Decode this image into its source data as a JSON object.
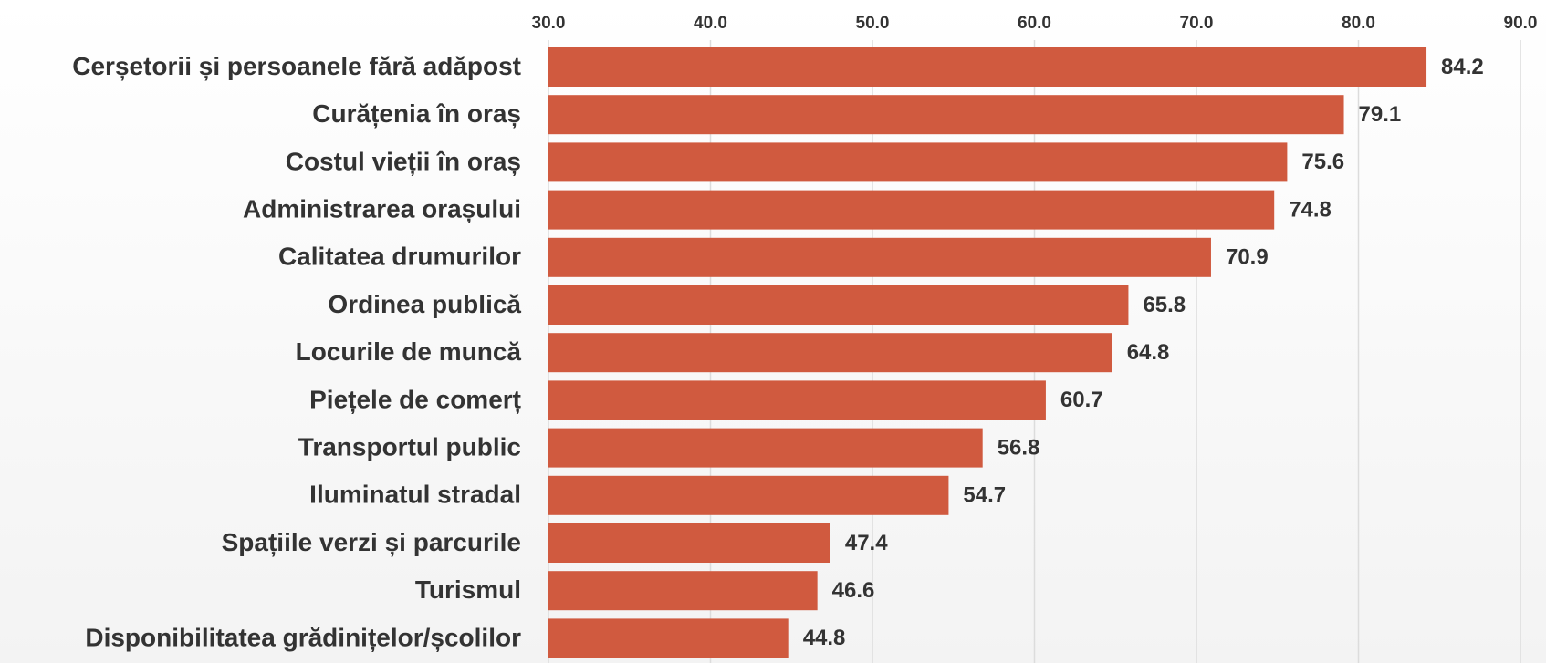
{
  "chart_data": {
    "type": "bar",
    "orientation": "horizontal",
    "categories": [
      "Cerșetorii și persoanele fără adăpost",
      "Curățenia în oraș",
      "Costul vieții în oraș",
      "Administrarea orașului",
      "Calitatea drumurilor",
      "Ordinea publică",
      "Locurile de muncă",
      "Piețele de comerț",
      "Transportul public",
      "Iluminatul stradal",
      "Spațiile verzi și parcurile",
      "Turismul",
      "Disponibilitatea grădinițelor/școlilor"
    ],
    "values": [
      84.2,
      79.1,
      75.6,
      74.8,
      70.9,
      65.8,
      64.8,
      60.7,
      56.8,
      54.7,
      47.4,
      46.6,
      44.8
    ],
    "color": "#d05a3f",
    "xlim": [
      30,
      90
    ],
    "xticks": [
      {
        "value": 30,
        "label": "30.0"
      },
      {
        "value": 40,
        "label": "40.0"
      },
      {
        "value": 50,
        "label": "50.0"
      },
      {
        "value": 60,
        "label": "60.0"
      },
      {
        "value": 70,
        "label": "70.0"
      },
      {
        "value": 80,
        "label": "80.0"
      },
      {
        "value": 90,
        "label": "90.0"
      }
    ],
    "grid": true
  }
}
